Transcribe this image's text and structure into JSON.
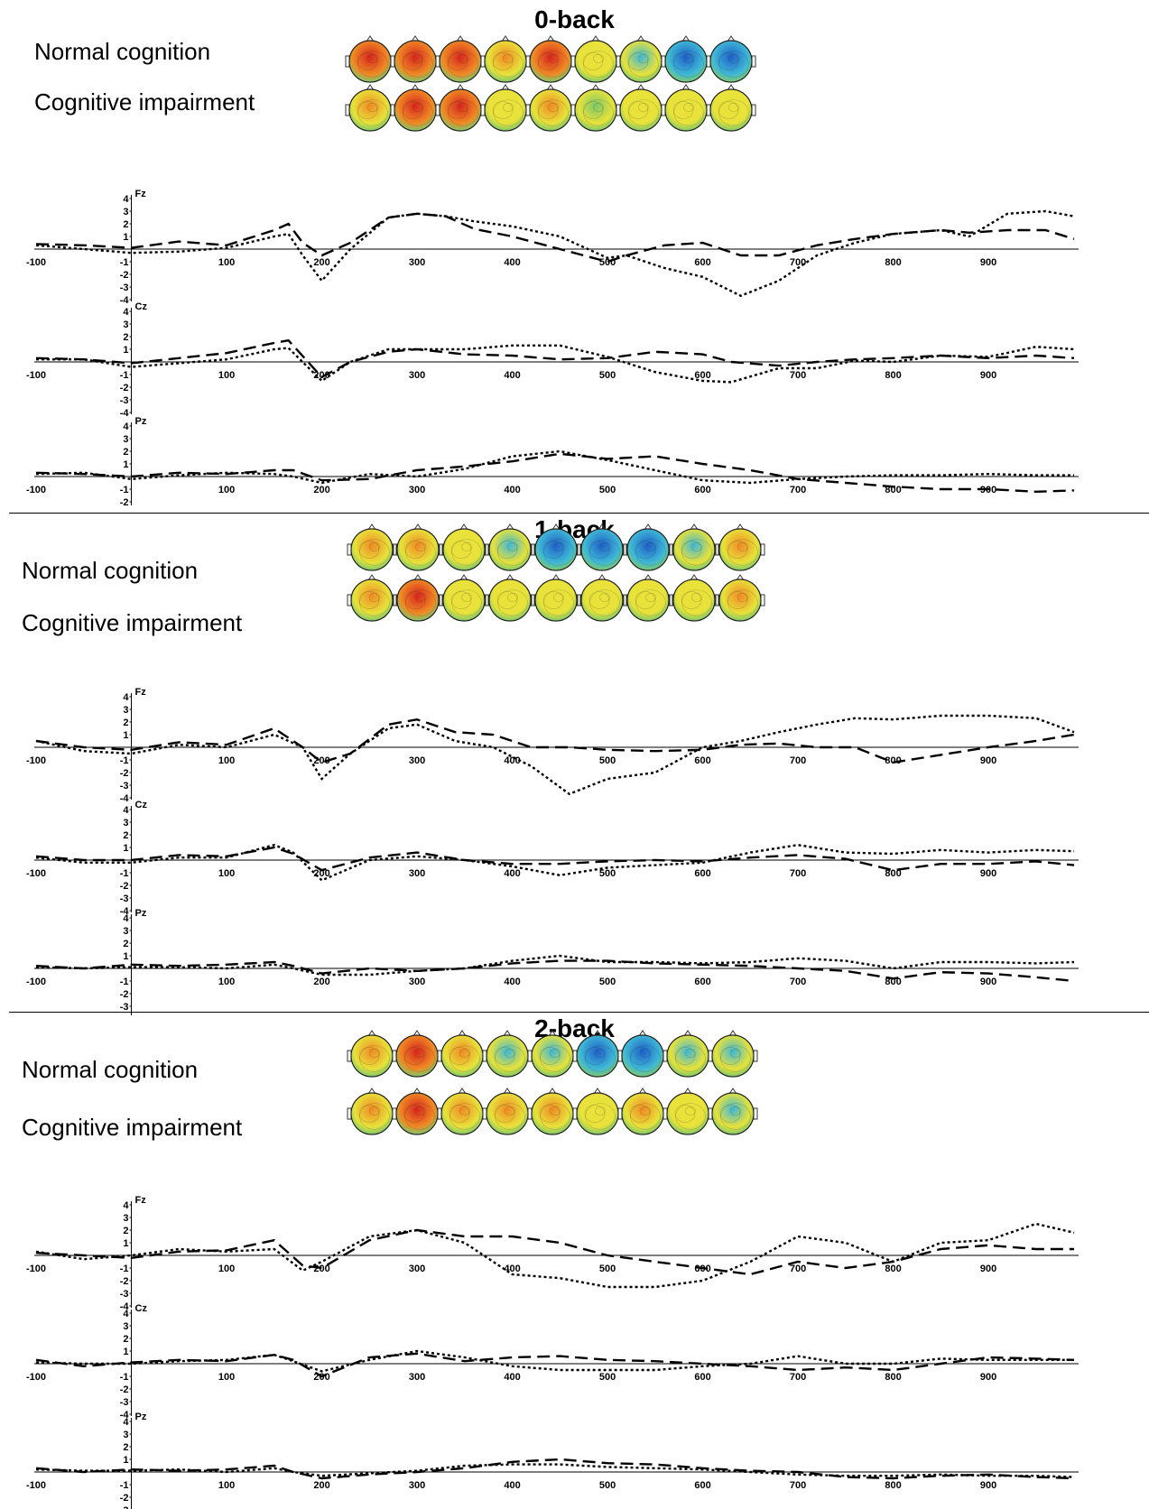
{
  "groups": {
    "normal": "Normal cognition",
    "impaired": "Cognitive impairment"
  },
  "colors": {
    "map_red": "#d7261e",
    "map_orange": "#f08a24",
    "map_yellow": "#e8e23a",
    "map_green": "#7cc86a",
    "map_cyan": "#3fb9d6",
    "map_blue": "#1f5fc8",
    "line": "#000000"
  },
  "chart_data": [
    {
      "type": "line",
      "title": "0-back",
      "x_ticks": [
        "-100",
        "100",
        "200",
        "300",
        "400",
        "500",
        "600",
        "700",
        "800",
        "900"
      ],
      "y_ticks": [
        "4",
        "3",
        "2",
        "1",
        "-1",
        "-2",
        "-3",
        "-4"
      ],
      "ylim": [
        -4,
        4
      ],
      "xlim": [
        -100,
        990
      ],
      "topomaps": {
        "normal": [
          "red",
          "red",
          "red",
          "orange",
          "red",
          "yellow",
          "cyan",
          "blue",
          "blue"
        ],
        "impaired": [
          "orange",
          "red",
          "red",
          "yellow",
          "orange",
          "green",
          "yellow",
          "yellow",
          "yellow"
        ]
      },
      "channels": [
        {
          "name": "Fz",
          "x": [
            -100,
            -50,
            0,
            50,
            100,
            150,
            165,
            180,
            200,
            230,
            270,
            300,
            330,
            360,
            400,
            450,
            500,
            520,
            560,
            600,
            640,
            680,
            720,
            760,
            800,
            850,
            880,
            920,
            960,
            990
          ],
          "dashed": [
            0.4,
            0.3,
            0.1,
            0.6,
            0.3,
            1.5,
            2.0,
            0.5,
            -0.5,
            0.5,
            2.5,
            2.8,
            2.6,
            1.6,
            1.0,
            0.0,
            -1.0,
            -0.5,
            0.3,
            0.5,
            -0.5,
            -0.5,
            0.3,
            0.8,
            1.2,
            1.5,
            1.3,
            1.5,
            1.5,
            0.8
          ],
          "dotted": [
            0.3,
            0.0,
            -0.3,
            -0.2,
            0.1,
            1.0,
            1.2,
            -0.5,
            -2.5,
            0.0,
            2.5,
            2.8,
            2.6,
            2.2,
            1.8,
            1.0,
            -0.7,
            -0.5,
            -1.5,
            -2.2,
            -3.7,
            -2.5,
            -0.5,
            0.5,
            1.2,
            1.5,
            1.0,
            2.8,
            3.0,
            2.6
          ]
        },
        {
          "name": "Cz",
          "x": [
            -100,
            -50,
            0,
            50,
            100,
            150,
            165,
            200,
            230,
            270,
            300,
            350,
            400,
            450,
            500,
            550,
            600,
            630,
            680,
            720,
            760,
            800,
            850,
            900,
            950,
            990
          ],
          "dashed": [
            0.3,
            0.2,
            -0.1,
            0.3,
            0.7,
            1.5,
            1.7,
            -1.2,
            0.0,
            0.8,
            1.0,
            0.6,
            0.5,
            0.2,
            0.3,
            0.8,
            0.6,
            0.0,
            -0.3,
            0.0,
            0.2,
            0.3,
            0.5,
            0.3,
            0.5,
            0.3
          ],
          "dotted": [
            0.2,
            0.2,
            -0.4,
            -0.1,
            0.2,
            1.0,
            1.1,
            -1.5,
            0.0,
            1.0,
            1.0,
            1.0,
            1.3,
            1.3,
            0.4,
            -0.8,
            -1.5,
            -1.6,
            -0.5,
            -0.5,
            0.1,
            0.0,
            0.5,
            0.4,
            1.2,
            1.0
          ]
        },
        {
          "name": "Pz",
          "x": [
            -100,
            -50,
            0,
            50,
            100,
            150,
            170,
            200,
            250,
            300,
            350,
            400,
            450,
            500,
            550,
            600,
            650,
            700,
            750,
            800,
            850,
            900,
            950,
            990
          ],
          "dashed": [
            0.3,
            0.2,
            0.0,
            0.3,
            0.2,
            0.5,
            0.5,
            -0.3,
            -0.2,
            0.5,
            0.8,
            1.2,
            1.8,
            1.4,
            1.6,
            1.0,
            0.5,
            -0.2,
            -0.5,
            -0.8,
            -1.0,
            -1.0,
            -1.2,
            -1.1
          ],
          "dotted": [
            0.2,
            0.3,
            -0.2,
            0.1,
            0.3,
            0.2,
            0.0,
            -0.5,
            0.2,
            0.0,
            0.6,
            1.6,
            2.0,
            1.3,
            0.5,
            -0.3,
            -0.5,
            -0.2,
            0.0,
            0.1,
            0.1,
            0.2,
            0.1,
            0.1
          ]
        }
      ]
    },
    {
      "type": "line",
      "title": "1-back",
      "x_ticks": [
        "-100",
        "100",
        "200",
        "300",
        "400",
        "500",
        "600",
        "700",
        "800",
        "900"
      ],
      "y_ticks": [
        "4",
        "3",
        "2",
        "1",
        "-1",
        "-2",
        "-3",
        "-4"
      ],
      "ylim": [
        -4,
        4
      ],
      "xlim": [
        -100,
        990
      ],
      "topomaps": {
        "normal": [
          "orange",
          "orange",
          "yellow",
          "cyan",
          "blue",
          "blue",
          "blue",
          "cyan",
          "orange"
        ],
        "impaired": [
          "orange",
          "red",
          "yellow",
          "yellow",
          "yellow",
          "yellow",
          "yellow",
          "yellow",
          "orange"
        ]
      },
      "channels": [
        {
          "name": "Fz",
          "x": [
            -100,
            -50,
            0,
            50,
            100,
            150,
            180,
            200,
            230,
            270,
            300,
            340,
            380,
            420,
            460,
            500,
            550,
            600,
            640,
            680,
            720,
            760,
            800,
            850,
            900,
            950,
            990
          ],
          "dashed": [
            0.5,
            0.0,
            -0.2,
            0.4,
            0.2,
            1.5,
            0.0,
            -1.2,
            -0.5,
            1.8,
            2.2,
            1.2,
            1.0,
            0.0,
            0.0,
            -0.2,
            -0.3,
            -0.2,
            0.2,
            0.3,
            0.0,
            0.0,
            -1.2,
            -0.6,
            0.0,
            0.5,
            1.0
          ],
          "dotted": [
            0.5,
            -0.3,
            -0.5,
            0.2,
            0.0,
            1.0,
            0.0,
            -2.5,
            -0.5,
            1.5,
            1.8,
            0.5,
            0.0,
            -1.5,
            -3.7,
            -2.5,
            -2.0,
            0.0,
            0.5,
            1.2,
            1.8,
            2.3,
            2.2,
            2.5,
            2.5,
            2.3,
            1.2
          ]
        },
        {
          "name": "Cz",
          "x": [
            -100,
            -50,
            0,
            50,
            100,
            150,
            170,
            200,
            250,
            300,
            350,
            400,
            450,
            500,
            550,
            600,
            650,
            700,
            750,
            800,
            850,
            900,
            950,
            990
          ],
          "dashed": [
            0.3,
            0.0,
            0.0,
            0.4,
            0.3,
            1.0,
            0.5,
            -0.8,
            0.2,
            0.6,
            0.0,
            -0.3,
            -0.3,
            -0.1,
            0.0,
            -0.1,
            0.2,
            0.4,
            0.1,
            -0.8,
            -0.3,
            -0.3,
            -0.1,
            -0.4
          ],
          "dotted": [
            0.2,
            -0.2,
            -0.2,
            0.2,
            0.2,
            1.2,
            0.6,
            -1.6,
            0.0,
            0.3,
            0.0,
            -0.5,
            -1.2,
            -0.6,
            -0.4,
            -0.2,
            0.6,
            1.2,
            0.6,
            0.5,
            0.8,
            0.6,
            0.8,
            0.7
          ]
        },
        {
          "name": "Pz",
          "x": [
            -100,
            -50,
            0,
            50,
            100,
            150,
            170,
            200,
            250,
            300,
            350,
            400,
            450,
            500,
            550,
            600,
            650,
            700,
            750,
            800,
            850,
            900,
            950,
            990
          ],
          "dashed": [
            0.2,
            0.0,
            0.3,
            0.2,
            0.3,
            0.5,
            0.2,
            -0.4,
            0.0,
            -0.2,
            0.0,
            0.4,
            0.6,
            0.6,
            0.4,
            0.3,
            0.2,
            0.0,
            -0.2,
            -0.8,
            -0.3,
            -0.4,
            -0.7,
            -1.0
          ],
          "dotted": [
            0.1,
            0.0,
            0.1,
            0.1,
            0.0,
            0.3,
            0.0,
            -0.5,
            -0.5,
            -0.2,
            0.0,
            0.6,
            1.0,
            0.5,
            0.5,
            0.4,
            0.5,
            0.8,
            0.6,
            0.0,
            0.5,
            0.5,
            0.4,
            0.5
          ]
        }
      ]
    },
    {
      "type": "line",
      "title": "2-back",
      "x_ticks": [
        "-100",
        "100",
        "200",
        "300",
        "400",
        "500",
        "600",
        "700",
        "800",
        "900"
      ],
      "y_ticks": [
        "4",
        "3",
        "2",
        "1",
        "-1",
        "-2",
        "-3",
        "-4"
      ],
      "ylim": [
        -4,
        4
      ],
      "xlim": [
        -100,
        990
      ],
      "topomaps": {
        "normal": [
          "orange",
          "red",
          "orange",
          "cyan",
          "cyan",
          "blue",
          "blue",
          "cyan",
          "cyan"
        ],
        "impaired": [
          "orange",
          "red",
          "orange",
          "orange",
          "orange",
          "yellow",
          "orange",
          "yellow",
          "cyan"
        ]
      },
      "channels": [
        {
          "name": "Fz",
          "x": [
            -100,
            -50,
            0,
            50,
            100,
            150,
            180,
            200,
            250,
            300,
            350,
            400,
            450,
            500,
            550,
            600,
            650,
            700,
            750,
            800,
            850,
            900,
            950,
            990
          ],
          "dashed": [
            0.2,
            0.0,
            -0.2,
            0.3,
            0.4,
            1.2,
            -0.8,
            -1.0,
            1.2,
            2.0,
            1.5,
            1.5,
            1.0,
            0.0,
            -0.5,
            -1.0,
            -1.5,
            -0.5,
            -1.0,
            -0.5,
            0.5,
            0.8,
            0.5,
            0.5
          ],
          "dotted": [
            0.3,
            -0.3,
            0.0,
            0.5,
            0.3,
            0.5,
            -1.2,
            -0.5,
            1.5,
            2.0,
            1.0,
            -1.5,
            -1.8,
            -2.5,
            -2.5,
            -2.0,
            -0.5,
            1.5,
            1.0,
            -0.5,
            1.0,
            1.2,
            2.5,
            1.8
          ]
        },
        {
          "name": "Cz",
          "x": [
            -100,
            -50,
            0,
            50,
            100,
            150,
            170,
            200,
            250,
            300,
            350,
            400,
            450,
            500,
            550,
            600,
            650,
            700,
            750,
            800,
            850,
            900,
            950,
            990
          ],
          "dashed": [
            0.3,
            -0.2,
            0.1,
            0.3,
            0.2,
            0.7,
            0.3,
            -1.0,
            0.5,
            0.8,
            0.2,
            0.5,
            0.6,
            0.3,
            0.2,
            0.0,
            -0.2,
            -0.5,
            -0.3,
            -0.5,
            0.0,
            0.5,
            0.4,
            0.3
          ],
          "dotted": [
            0.1,
            0.0,
            0.0,
            0.2,
            0.3,
            0.7,
            0.2,
            -0.6,
            0.3,
            1.0,
            0.5,
            -0.2,
            -0.5,
            -0.5,
            -0.5,
            -0.2,
            0.0,
            0.6,
            0.0,
            0.0,
            0.4,
            0.3,
            0.3,
            0.3
          ]
        },
        {
          "name": "Pz",
          "x": [
            -100,
            -50,
            0,
            50,
            100,
            150,
            170,
            200,
            250,
            300,
            350,
            400,
            450,
            500,
            550,
            600,
            650,
            700,
            750,
            800,
            850,
            900,
            950,
            990
          ],
          "dashed": [
            0.3,
            0.0,
            0.2,
            0.1,
            0.2,
            0.5,
            0.0,
            -0.5,
            -0.2,
            0.0,
            0.3,
            0.8,
            1.0,
            0.7,
            0.6,
            0.3,
            0.1,
            0.0,
            -0.4,
            -0.5,
            -0.3,
            -0.2,
            -0.4,
            -0.5
          ],
          "dotted": [
            0.2,
            0.1,
            0.1,
            0.2,
            0.0,
            0.3,
            0.0,
            -0.3,
            -0.1,
            0.1,
            0.5,
            0.6,
            0.6,
            0.4,
            0.3,
            0.2,
            0.0,
            -0.2,
            -0.3,
            -0.3,
            -0.2,
            -0.3,
            -0.3,
            -0.4
          ]
        }
      ]
    }
  ]
}
